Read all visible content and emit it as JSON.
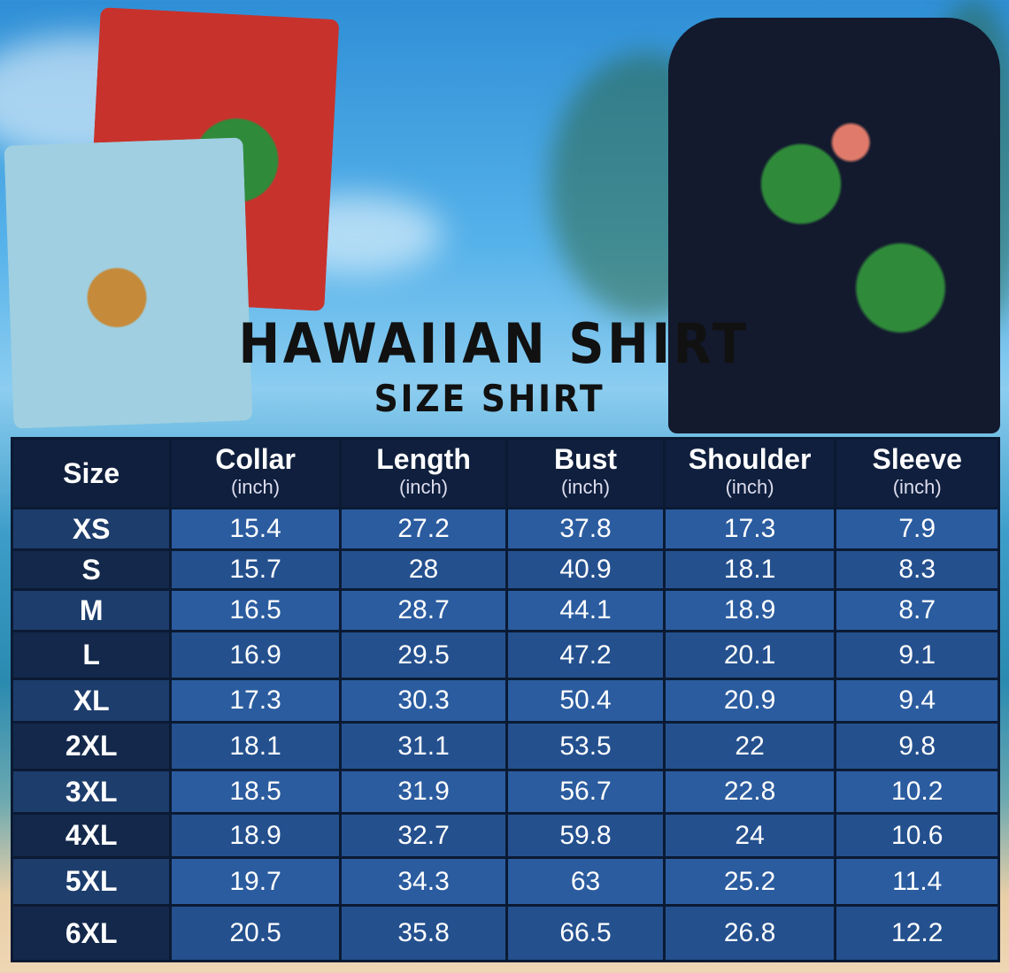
{
  "title": "HAWAIIAN SHIRT",
  "subtitle": "SIZE SHIRT",
  "colors": {
    "header": "#0f1f3d",
    "row_light": "#2b5c9f",
    "row_dark": "#24508e",
    "size_col": "#13284b"
  },
  "table": {
    "headers": [
      {
        "label": "Size",
        "unit": ""
      },
      {
        "label": "Collar",
        "unit": "(inch)"
      },
      {
        "label": "Length",
        "unit": "(inch)"
      },
      {
        "label": "Bust",
        "unit": "(inch)"
      },
      {
        "label": "Shoulder",
        "unit": "(inch)"
      },
      {
        "label": "Sleeve",
        "unit": "(inch)"
      }
    ],
    "rows": [
      [
        "XS",
        "15.4",
        "27.2",
        "37.8",
        "17.3",
        "7.9"
      ],
      [
        "S",
        "15.7",
        "28",
        "40.9",
        "18.1",
        "8.3"
      ],
      [
        "M",
        "16.5",
        "28.7",
        "44.1",
        "18.9",
        "8.7"
      ],
      [
        "L",
        "16.9",
        "29.5",
        "47.2",
        "20.1",
        "9.1"
      ],
      [
        "XL",
        "17.3",
        "30.3",
        "50.4",
        "20.9",
        "9.4"
      ],
      [
        "2XL",
        "18.1",
        "31.1",
        "53.5",
        "22",
        "9.8"
      ],
      [
        "3XL",
        "18.5",
        "31.9",
        "56.7",
        "22.8",
        "10.2"
      ],
      [
        "4XL",
        "18.9",
        "32.7",
        "59.8",
        "24",
        "10.6"
      ],
      [
        "5XL",
        "19.7",
        "34.3",
        "63",
        "25.2",
        "11.4"
      ],
      [
        "6XL",
        "20.5",
        "35.8",
        "66.5",
        "26.8",
        "12.2"
      ]
    ]
  }
}
